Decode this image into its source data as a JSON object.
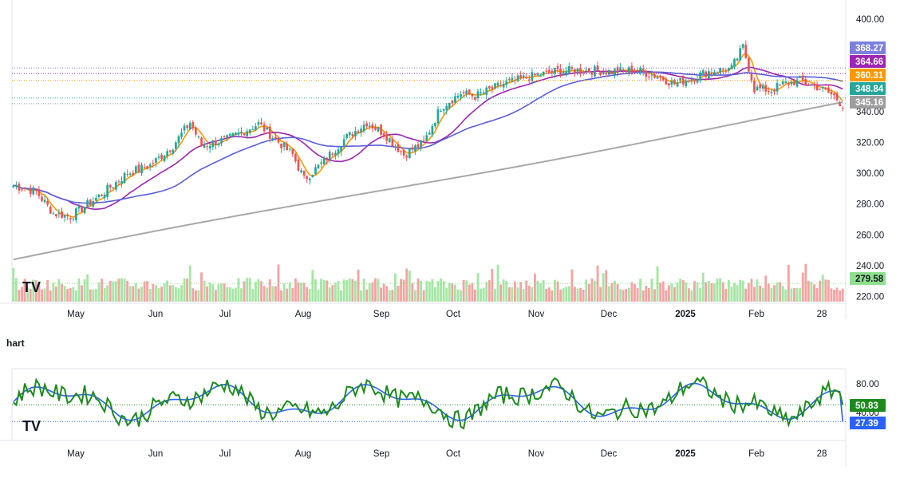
{
  "chart_data": [
    {
      "type": "candlestick",
      "title": "",
      "xlabel": "",
      "ylabel": "",
      "ylim": [
        212,
        410
      ],
      "grid": false,
      "x_axis_labels": [
        "May",
        "Jun",
        "Jul",
        "Aug",
        "Sep",
        "Oct",
        "Nov",
        "Dec",
        "2025",
        "Feb",
        "28"
      ],
      "y_ticks": [
        "400.00",
        "340.00",
        "320.00",
        "300.00",
        "280.00",
        "260.00",
        "240.00",
        "220.00"
      ],
      "price_keypoints": [
        [
          0,
          292
        ],
        [
          8,
          288
        ],
        [
          14,
          274
        ],
        [
          20,
          272
        ],
        [
          30,
          285
        ],
        [
          40,
          300
        ],
        [
          48,
          305
        ],
        [
          56,
          318
        ],
        [
          62,
          333
        ],
        [
          66,
          318
        ],
        [
          75,
          322
        ],
        [
          86,
          332
        ],
        [
          92,
          322
        ],
        [
          98,
          312
        ],
        [
          102,
          296
        ],
        [
          108,
          306
        ],
        [
          116,
          322
        ],
        [
          124,
          333
        ],
        [
          130,
          326
        ],
        [
          137,
          312
        ],
        [
          144,
          320
        ],
        [
          150,
          343
        ],
        [
          157,
          352
        ],
        [
          162,
          350
        ],
        [
          172,
          358
        ],
        [
          180,
          362
        ],
        [
          190,
          366
        ],
        [
          200,
          367
        ],
        [
          210,
          366
        ],
        [
          218,
          367
        ],
        [
          226,
          363
        ],
        [
          232,
          358
        ],
        [
          238,
          362
        ],
        [
          244,
          366
        ],
        [
          252,
          368
        ],
        [
          256,
          382
        ],
        [
          260,
          355
        ],
        [
          266,
          354
        ],
        [
          270,
          358
        ],
        [
          276,
          360
        ],
        [
          282,
          356
        ],
        [
          288,
          350
        ],
        [
          291,
          344
        ]
      ],
      "series": [
        {
          "name": "",
          "color": "#ff9800",
          "period": 5
        },
        {
          "name": "",
          "color": "#9c27b0",
          "period": 20
        },
        {
          "name": "",
          "color": "#5b5fd9",
          "period": 50
        },
        {
          "name": "",
          "color": "#a8a8a8",
          "period": 200
        }
      ],
      "volume_last": 279.58,
      "price_levels": [
        {
          "label": "368.27",
          "value": 368.27,
          "color": "#7b7fe0"
        },
        {
          "label": "364.66",
          "value": 364.66,
          "color": "#9c27b0"
        },
        {
          "label": "360.31",
          "value": 360.31,
          "color": "#ff9800"
        },
        {
          "label": "348.84",
          "value": 348.84,
          "color": "#26a69a"
        },
        {
          "label": "345.16",
          "value": 345.16,
          "color": "#9e9e9e"
        },
        {
          "label": "279.58",
          "value": 228.5,
          "color": "#8ee08e"
        }
      ]
    },
    {
      "type": "line",
      "title": "",
      "xlabel": "",
      "ylabel": "",
      "ylim": [
        8,
        100
      ],
      "grid": false,
      "x_axis_labels": [
        "May",
        "Jun",
        "Jul",
        "Aug",
        "Sep",
        "Oct",
        "Nov",
        "Dec",
        "2025",
        "Feb",
        "28"
      ],
      "y_ticks": [
        "80.00",
        "40.00"
      ],
      "series": [
        {
          "name": "",
          "color": "#1e8a1e",
          "last": 50.83
        },
        {
          "name": "",
          "color": "#2962ff",
          "last": 27.39
        }
      ],
      "price_levels": [
        {
          "label": "50.83",
          "value": 50.83,
          "color": "#1e8a1e"
        },
        {
          "label": "27.39",
          "value": 27.39,
          "color": "#2962ff"
        }
      ]
    }
  ],
  "section_label": "hart",
  "watermark": "TV",
  "colors": {
    "up": "#26a69a",
    "down": "#ef5350",
    "vol_up": "#a5e6a5",
    "vol_down": "#f5a3a3",
    "axis": "#131722"
  }
}
